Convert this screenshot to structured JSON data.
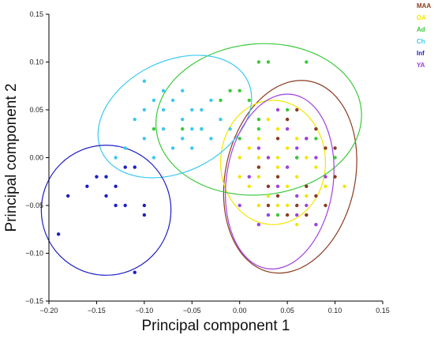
{
  "chart_data": {
    "type": "scatter",
    "xlabel": "Principal component 1",
    "ylabel": "Principal component 2",
    "xlim": [
      -0.2,
      0.15
    ],
    "ylim": [
      -0.15,
      0.15
    ],
    "xticks": [
      "−0.20",
      "−0.15",
      "−0.10",
      "−0.05",
      "0.00",
      "0.05",
      "0.10",
      "0.15"
    ],
    "yticks": [
      "0.15",
      "0.10",
      "0.05",
      "0.00",
      "−0.05",
      "−0.10",
      "−0.15"
    ],
    "xtick_values": [
      -0.2,
      -0.15,
      -0.1,
      -0.05,
      0.0,
      0.05,
      0.1,
      0.15
    ],
    "ytick_values": [
      0.15,
      0.1,
      0.05,
      0.0,
      -0.05,
      -0.1,
      -0.15
    ],
    "grid": false,
    "legend_position": "top-right",
    "series": [
      {
        "name": "MAA",
        "color": "#8B3A1E",
        "ellipse": {
          "cx": 0.053,
          "cy": -0.02,
          "rx": 0.068,
          "ry": 0.102,
          "angle": 12
        },
        "points": [
          [
            0.07,
            -0.03
          ],
          [
            0.06,
            0.0
          ],
          [
            0.04,
            -0.04
          ],
          [
            0.08,
            0.03
          ],
          [
            0.09,
            0.01
          ],
          [
            0.05,
            0.04
          ],
          [
            0.1,
            -0.02
          ],
          [
            0.07,
            -0.06
          ],
          [
            0.03,
            -0.03
          ],
          [
            0.06,
            -0.05
          ],
          [
            0.08,
            -0.04
          ],
          [
            0.04,
            0.02
          ],
          [
            0.02,
            -0.01
          ],
          [
            0.05,
            -0.06
          ],
          [
            0.09,
            -0.05
          ],
          [
            0.06,
            0.05
          ],
          [
            0.03,
            -0.05
          ],
          [
            0.07,
            0.02
          ],
          [
            0.1,
            0.01
          ],
          [
            0.04,
            -0.02
          ]
        ]
      },
      {
        "name": "OA",
        "color": "#F2E600",
        "ellipse": {
          "cx": 0.035,
          "cy": -0.005,
          "rx": 0.055,
          "ry": 0.065,
          "angle": 0
        },
        "points": [
          [
            0.0,
            0.0
          ],
          [
            0.02,
            -0.02
          ],
          [
            0.03,
            0.0
          ],
          [
            0.04,
            -0.01
          ],
          [
            0.05,
            0.01
          ],
          [
            0.06,
            -0.02
          ],
          [
            0.03,
            -0.04
          ],
          [
            0.01,
            -0.03
          ],
          [
            0.05,
            -0.03
          ],
          [
            0.07,
            0.0
          ],
          [
            0.04,
            0.03
          ],
          [
            0.02,
            0.02
          ],
          [
            0.06,
            0.02
          ],
          [
            0.08,
            -0.01
          ],
          [
            0.03,
            -0.06
          ],
          [
            0.01,
            0.01
          ],
          [
            0.07,
            -0.04
          ],
          [
            0.05,
            -0.05
          ],
          [
            0.0,
            -0.02
          ],
          [
            0.04,
            0.0
          ],
          [
            0.09,
            -0.03
          ],
          [
            0.11,
            -0.03
          ],
          [
            0.02,
            -0.05
          ],
          [
            0.06,
            -0.07
          ],
          [
            0.03,
            0.04
          ],
          [
            0.05,
            -0.01
          ],
          [
            0.02,
            0.0
          ],
          [
            0.04,
            -0.05
          ]
        ]
      },
      {
        "name": "Ad",
        "color": "#3CC83C",
        "ellipse": {
          "cx": 0.02,
          "cy": 0.04,
          "rx": 0.108,
          "ry": 0.079,
          "angle": -5
        },
        "points": [
          [
            0.02,
            0.1
          ],
          [
            0.03,
            0.1
          ],
          [
            0.07,
            0.1
          ],
          [
            -0.01,
            0.07
          ],
          [
            0.0,
            0.07
          ],
          [
            0.01,
            0.06
          ],
          [
            0.02,
            0.04
          ],
          [
            -0.06,
            0.03
          ],
          [
            -0.02,
            0.06
          ],
          [
            0.0,
            0.02
          ],
          [
            0.05,
            0.05
          ],
          [
            0.08,
            0.02
          ],
          [
            -0.04,
            0.03
          ],
          [
            0.02,
            0.03
          ],
          [
            0.06,
            0.0
          ],
          [
            -0.09,
            0.03
          ],
          [
            0.04,
            -0.06
          ],
          [
            0.1,
            0.0
          ]
        ]
      },
      {
        "name": "Ch",
        "color": "#3CC8F0",
        "ellipse": {
          "cx": -0.068,
          "cy": 0.043,
          "rx": 0.085,
          "ry": 0.058,
          "angle": -26
        },
        "points": [
          [
            -0.1,
            0.08
          ],
          [
            -0.09,
            0.06
          ],
          [
            -0.08,
            0.05
          ],
          [
            -0.07,
            0.06
          ],
          [
            -0.06,
            0.04
          ],
          [
            -0.05,
            0.05
          ],
          [
            -0.04,
            0.03
          ],
          [
            -0.03,
            0.06
          ],
          [
            -0.06,
            0.02
          ],
          [
            -0.08,
            0.03
          ],
          [
            -0.1,
            0.02
          ],
          [
            -0.11,
            0.04
          ],
          [
            -0.05,
            0.01
          ],
          [
            -0.03,
            0.02
          ],
          [
            -0.07,
            0.01
          ],
          [
            -0.09,
            0.0
          ],
          [
            -0.12,
            0.01
          ],
          [
            -0.13,
            0.0
          ],
          [
            -0.04,
            0.05
          ],
          [
            -0.02,
            0.04
          ],
          [
            -0.01,
            0.03
          ],
          [
            -0.06,
            0.07
          ],
          [
            -0.08,
            0.07
          ],
          [
            -0.1,
            0.05
          ],
          [
            -0.05,
            0.03
          ]
        ]
      },
      {
        "name": "Inf",
        "color": "#1E1EC8",
        "ellipse": {
          "cx": -0.14,
          "cy": -0.055,
          "rx": 0.068,
          "ry": 0.068,
          "angle": 0
        },
        "points": [
          [
            -0.18,
            -0.04
          ],
          [
            -0.16,
            -0.03
          ],
          [
            -0.15,
            -0.02
          ],
          [
            -0.14,
            -0.04
          ],
          [
            -0.13,
            -0.03
          ],
          [
            -0.12,
            -0.01
          ],
          [
            -0.11,
            -0.01
          ],
          [
            -0.12,
            -0.05
          ],
          [
            -0.1,
            -0.05
          ],
          [
            -0.1,
            -0.06
          ],
          [
            -0.19,
            -0.08
          ],
          [
            -0.11,
            -0.12
          ],
          [
            -0.14,
            -0.02
          ],
          [
            -0.13,
            -0.05
          ]
        ]
      },
      {
        "name": "YA",
        "color": "#A040E0",
        "ellipse": {
          "cx": 0.042,
          "cy": -0.025,
          "rx": 0.056,
          "ry": 0.092,
          "angle": 8
        },
        "points": [
          [
            0.0,
            -0.05
          ],
          [
            0.02,
            -0.07
          ],
          [
            0.03,
            0.0
          ],
          [
            0.05,
            0.03
          ],
          [
            0.06,
            -0.04
          ],
          [
            0.07,
            0.02
          ],
          [
            0.08,
            0.0
          ],
          [
            0.04,
            -0.03
          ],
          [
            0.03,
            -0.06
          ],
          [
            0.06,
            -0.06
          ],
          [
            0.05,
            -0.01
          ],
          [
            0.09,
            -0.02
          ],
          [
            0.01,
            -0.02
          ],
          [
            0.07,
            -0.05
          ],
          [
            0.04,
            0.05
          ],
          [
            0.02,
            0.01
          ],
          [
            0.08,
            -0.07
          ],
          [
            0.06,
            0.01
          ]
        ]
      }
    ]
  }
}
